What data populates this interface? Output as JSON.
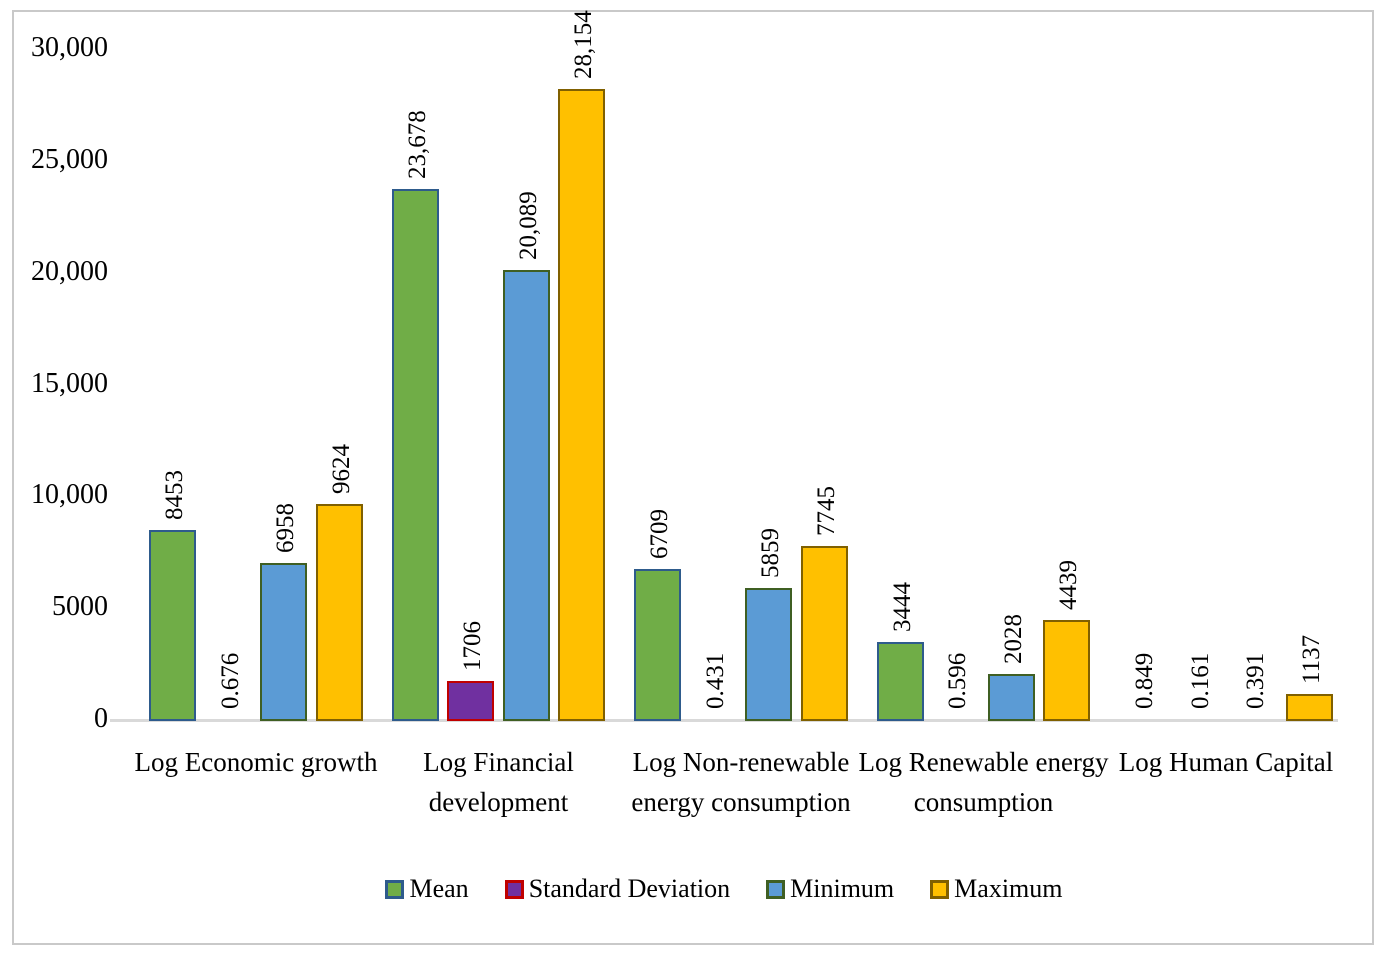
{
  "chart_data": {
    "type": "bar",
    "title": "",
    "xlabel": "",
    "ylabel": "",
    "grid": false,
    "legend_position": "bottom",
    "categories": [
      "Log Economic growth",
      "Log Financial development",
      "Log Non-renewable energy consumption",
      "Log Renewable energy consumption",
      "Log Human Capital"
    ],
    "series": [
      {
        "name": "Mean",
        "fill": "#70AD47",
        "stroke": "#2E5B8C",
        "values": [
          8453,
          23678,
          6709,
          3444,
          0.849
        ],
        "labels": [
          "8453",
          "23,678",
          "6709",
          "3444",
          "0.849"
        ]
      },
      {
        "name": "Standard Deviation",
        "fill": "#7030A0",
        "stroke": "#C00000",
        "values": [
          0.676,
          1706,
          0.431,
          0.596,
          0.161
        ],
        "labels": [
          "0.676",
          "1706",
          "0.431",
          "0.596",
          "0.161"
        ]
      },
      {
        "name": "Minimum",
        "fill": "#5B9BD5",
        "stroke": "#3F5F23",
        "values": [
          6958,
          20089,
          5859,
          2028,
          0.391
        ],
        "labels": [
          "6958",
          "20,089",
          "5859",
          "2028",
          "0.391"
        ]
      },
      {
        "name": "Maximum",
        "fill": "#FFC000",
        "stroke": "#806000",
        "values": [
          9624,
          28154,
          7745,
          4439,
          1137
        ],
        "labels": [
          "9624",
          "28,154",
          "7745",
          "4439",
          "1137"
        ]
      }
    ],
    "y_axis": {
      "min": 0,
      "max": 30000,
      "ticks": [
        {
          "value": 0,
          "label": "0"
        },
        {
          "value": 5000,
          "label": "5000"
        },
        {
          "value": 10000,
          "label": "10,000"
        },
        {
          "value": 15000,
          "label": "15,000"
        },
        {
          "value": 20000,
          "label": "20,000"
        },
        {
          "value": 25000,
          "label": "25,000"
        },
        {
          "value": 30000,
          "label": "30,000"
        }
      ]
    },
    "colors": {
      "axis_line": "#D9D9D9",
      "frame_border": "#C9C9C9",
      "background": "#FFFFFF",
      "text": "#000000"
    }
  }
}
